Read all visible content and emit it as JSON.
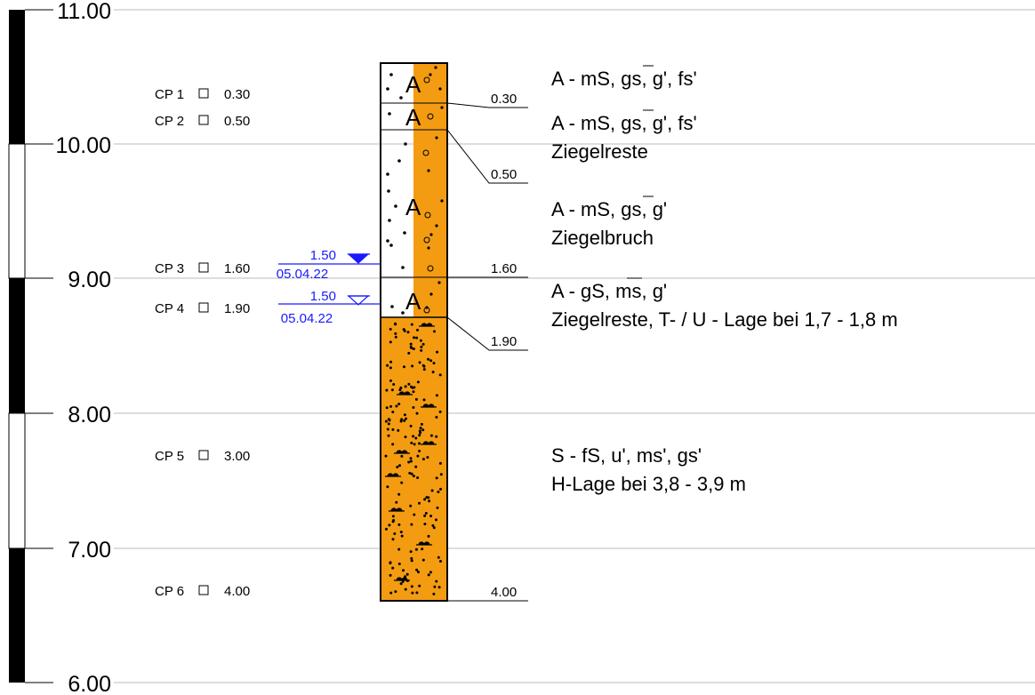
{
  "elevation_axis": {
    "labels": [
      "11.00",
      "10.00",
      "9.00",
      "8.00",
      "7.00",
      "6.00"
    ]
  },
  "samples": [
    {
      "label": "CP 1",
      "depth": "0.30"
    },
    {
      "label": "CP 2",
      "depth": "0.50"
    },
    {
      "label": "CP 3",
      "depth": "1.60"
    },
    {
      "label": "CP 4",
      "depth": "1.90"
    },
    {
      "label": "CP 5",
      "depth": "3.00"
    },
    {
      "label": "CP 6",
      "depth": "4.00"
    }
  ],
  "water_levels": [
    {
      "depth": "1.50",
      "date": "05.04.22"
    },
    {
      "depth": "1.50",
      "date": "05.04.22"
    }
  ],
  "layer_boundaries": [
    "0.30",
    "0.50",
    "1.60",
    "1.90",
    "4.00"
  ],
  "layer_symbols": [
    "A",
    "A",
    "A",
    "A"
  ],
  "descriptions": [
    {
      "lines": [
        "A - mS, gs, g', fs'"
      ]
    },
    {
      "lines": [
        "A - mS, gs, g', fs'",
        "Ziegelreste"
      ]
    },
    {
      "lines": [
        "A - mS, gs, g'",
        "Ziegelbruch"
      ]
    },
    {
      "lines": [
        "A - gS, ms, g'",
        "Ziegelreste, T- / U - Lage bei 1,7 - 1,8 m"
      ]
    },
    {
      "lines": [
        "S - fS, u', ms', gs'",
        "H-Lage bei 3,8 - 3,9 m"
      ]
    }
  ],
  "colors": {
    "fill_orange": "#f39c12",
    "water_blue": "#1a1aff",
    "grid": "#bbbbbb"
  }
}
